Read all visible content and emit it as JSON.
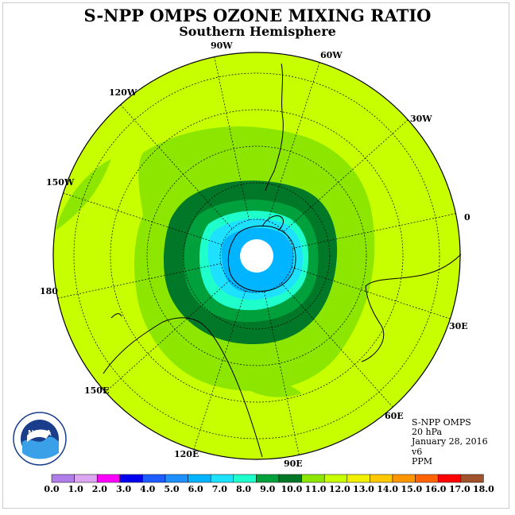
{
  "header": {
    "title": "S-NPP OMPS OZONE MIXING RATIO",
    "subtitle": "Southern Hemisphere"
  },
  "info": {
    "instrument": "S-NPP OMPS",
    "level": "20 hPa",
    "date": "January 28, 2016",
    "version": "v6",
    "units": "PPM"
  },
  "longitude_labels": [
    "90W",
    "60W",
    "30W",
    "0",
    "30E",
    "60E",
    "90E",
    "120E",
    "150E",
    "180",
    "150W",
    "120W"
  ],
  "colorbar": {
    "ticks": [
      "0.0",
      "1.0",
      "2.0",
      "3.0",
      "4.0",
      "5.0",
      "6.0",
      "7.0",
      "8.0",
      "9.0",
      "10.0",
      "11.0",
      "12.0",
      "13.0",
      "14.0",
      "15.0",
      "16.0",
      "17.0",
      "18.0"
    ],
    "colors": [
      "#b07ee8",
      "#dca6f0",
      "#ff00ff",
      "#0000ee",
      "#1e5cff",
      "#1e90ff",
      "#00b4ff",
      "#1ee0ff",
      "#1effcc",
      "#00a03c",
      "#007828",
      "#8ce600",
      "#c8ff00",
      "#f0f000",
      "#ffc800",
      "#ff9600",
      "#ff6400",
      "#ff0000",
      "#a0522d"
    ]
  },
  "colors": {
    "background_field": "#c8ff00",
    "band_11": "#8ce600",
    "band_10": "#007828",
    "band_9": "#00a03c",
    "band_8": "#1effcc",
    "band_7": "#1ee0ff",
    "band_6": "#00b4ff",
    "pole_hole": "#ffffff"
  },
  "logo": {
    "text": "NOAA"
  }
}
